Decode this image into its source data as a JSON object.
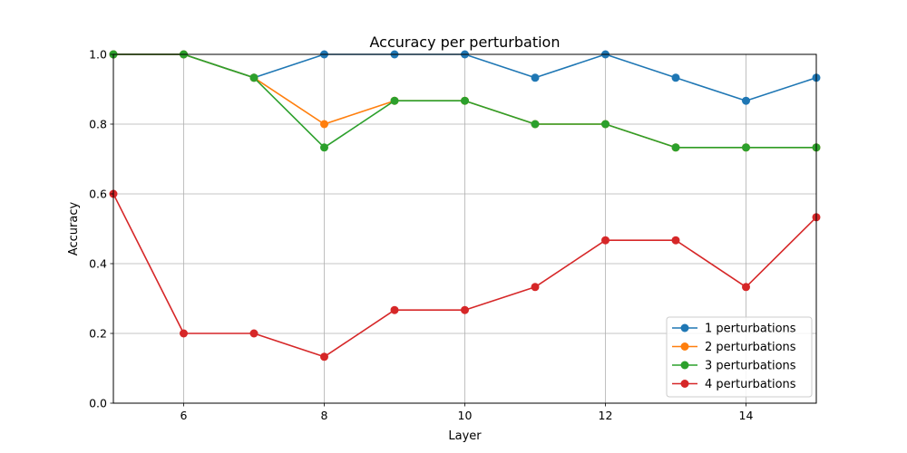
{
  "chart_data": {
    "type": "line",
    "title": "Accuracy per perturbation",
    "xlabel": "Layer",
    "ylabel": "Accuracy",
    "xlim": [
      5,
      15
    ],
    "ylim": [
      0.0,
      1.0
    ],
    "xticks": [
      6,
      8,
      10,
      12,
      14
    ],
    "yticks": [
      0.0,
      0.2,
      0.4,
      0.6,
      0.8,
      1.0
    ],
    "xtick_labels": [
      "6",
      "8",
      "10",
      "12",
      "14"
    ],
    "ytick_labels": [
      "0.0",
      "0.2",
      "0.4",
      "0.6",
      "0.8",
      "1.0"
    ],
    "grid": true,
    "legend_position": "lower-right",
    "x": [
      5,
      6,
      7,
      8,
      9,
      10,
      11,
      12,
      13,
      14,
      15
    ],
    "series": [
      {
        "name": "1 perturbations",
        "color": "#1f77b4",
        "values": [
          1.0,
          1.0,
          0.933,
          1.0,
          1.0,
          1.0,
          0.933,
          1.0,
          0.933,
          0.867,
          0.933
        ]
      },
      {
        "name": "2 perturbations",
        "color": "#ff7f0e",
        "values": [
          1.0,
          1.0,
          0.933,
          0.8,
          0.867,
          0.867,
          0.8,
          0.8,
          0.733,
          0.733,
          0.733
        ]
      },
      {
        "name": "3 perturbations",
        "color": "#2ca02c",
        "values": [
          1.0,
          1.0,
          0.933,
          0.733,
          0.867,
          0.867,
          0.8,
          0.8,
          0.733,
          0.733,
          0.733
        ]
      },
      {
        "name": "4 perturbations",
        "color": "#d62728",
        "values": [
          0.6,
          0.2,
          0.2,
          0.133,
          0.267,
          0.267,
          0.333,
          0.467,
          0.467,
          0.333,
          0.533
        ]
      }
    ]
  }
}
